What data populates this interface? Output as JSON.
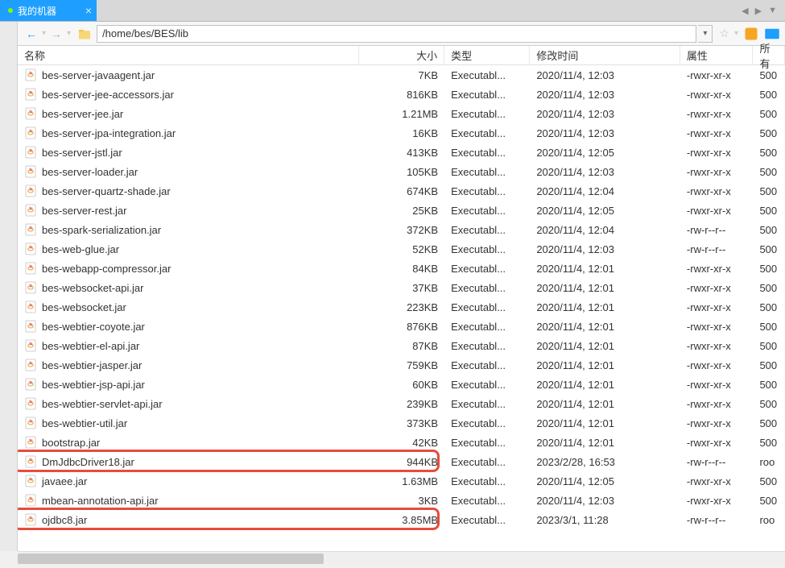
{
  "tab": {
    "label": "我的机器"
  },
  "path": "/home/bes/BES/lib",
  "columns": {
    "name": "名称",
    "size": "大小",
    "type": "类型",
    "date": "修改时间",
    "perm": "属性",
    "owner": "所有"
  },
  "files": [
    {
      "name": "bes-server-javaagent.jar",
      "size": "7KB",
      "type": "Executabl...",
      "date": "2020/11/4, 12:03",
      "perm": "-rwxr-xr-x",
      "owner": "500"
    },
    {
      "name": "bes-server-jee-accessors.jar",
      "size": "816KB",
      "type": "Executabl...",
      "date": "2020/11/4, 12:03",
      "perm": "-rwxr-xr-x",
      "owner": "500"
    },
    {
      "name": "bes-server-jee.jar",
      "size": "1.21MB",
      "type": "Executabl...",
      "date": "2020/11/4, 12:03",
      "perm": "-rwxr-xr-x",
      "owner": "500"
    },
    {
      "name": "bes-server-jpa-integration.jar",
      "size": "16KB",
      "type": "Executabl...",
      "date": "2020/11/4, 12:03",
      "perm": "-rwxr-xr-x",
      "owner": "500"
    },
    {
      "name": "bes-server-jstl.jar",
      "size": "413KB",
      "type": "Executabl...",
      "date": "2020/11/4, 12:05",
      "perm": "-rwxr-xr-x",
      "owner": "500"
    },
    {
      "name": "bes-server-loader.jar",
      "size": "105KB",
      "type": "Executabl...",
      "date": "2020/11/4, 12:03",
      "perm": "-rwxr-xr-x",
      "owner": "500"
    },
    {
      "name": "bes-server-quartz-shade.jar",
      "size": "674KB",
      "type": "Executabl...",
      "date": "2020/11/4, 12:04",
      "perm": "-rwxr-xr-x",
      "owner": "500"
    },
    {
      "name": "bes-server-rest.jar",
      "size": "25KB",
      "type": "Executabl...",
      "date": "2020/11/4, 12:05",
      "perm": "-rwxr-xr-x",
      "owner": "500"
    },
    {
      "name": "bes-spark-serialization.jar",
      "size": "372KB",
      "type": "Executabl...",
      "date": "2020/11/4, 12:04",
      "perm": "-rw-r--r--",
      "owner": "500"
    },
    {
      "name": "bes-web-glue.jar",
      "size": "52KB",
      "type": "Executabl...",
      "date": "2020/11/4, 12:03",
      "perm": "-rw-r--r--",
      "owner": "500"
    },
    {
      "name": "bes-webapp-compressor.jar",
      "size": "84KB",
      "type": "Executabl...",
      "date": "2020/11/4, 12:01",
      "perm": "-rwxr-xr-x",
      "owner": "500"
    },
    {
      "name": "bes-websocket-api.jar",
      "size": "37KB",
      "type": "Executabl...",
      "date": "2020/11/4, 12:01",
      "perm": "-rwxr-xr-x",
      "owner": "500"
    },
    {
      "name": "bes-websocket.jar",
      "size": "223KB",
      "type": "Executabl...",
      "date": "2020/11/4, 12:01",
      "perm": "-rwxr-xr-x",
      "owner": "500"
    },
    {
      "name": "bes-webtier-coyote.jar",
      "size": "876KB",
      "type": "Executabl...",
      "date": "2020/11/4, 12:01",
      "perm": "-rwxr-xr-x",
      "owner": "500"
    },
    {
      "name": "bes-webtier-el-api.jar",
      "size": "87KB",
      "type": "Executabl...",
      "date": "2020/11/4, 12:01",
      "perm": "-rwxr-xr-x",
      "owner": "500"
    },
    {
      "name": "bes-webtier-jasper.jar",
      "size": "759KB",
      "type": "Executabl...",
      "date": "2020/11/4, 12:01",
      "perm": "-rwxr-xr-x",
      "owner": "500"
    },
    {
      "name": "bes-webtier-jsp-api.jar",
      "size": "60KB",
      "type": "Executabl...",
      "date": "2020/11/4, 12:01",
      "perm": "-rwxr-xr-x",
      "owner": "500"
    },
    {
      "name": "bes-webtier-servlet-api.jar",
      "size": "239KB",
      "type": "Executabl...",
      "date": "2020/11/4, 12:01",
      "perm": "-rwxr-xr-x",
      "owner": "500"
    },
    {
      "name": "bes-webtier-util.jar",
      "size": "373KB",
      "type": "Executabl...",
      "date": "2020/11/4, 12:01",
      "perm": "-rwxr-xr-x",
      "owner": "500"
    },
    {
      "name": "bootstrap.jar",
      "size": "42KB",
      "type": "Executabl...",
      "date": "2020/11/4, 12:01",
      "perm": "-rwxr-xr-x",
      "owner": "500"
    },
    {
      "name": "DmJdbcDriver18.jar",
      "size": "944KB",
      "type": "Executabl...",
      "date": "2023/2/28, 16:53",
      "perm": "-rw-r--r--",
      "owner": "roo"
    },
    {
      "name": "javaee.jar",
      "size": "1.63MB",
      "type": "Executabl...",
      "date": "2020/11/4, 12:05",
      "perm": "-rwxr-xr-x",
      "owner": "500"
    },
    {
      "name": "mbean-annotation-api.jar",
      "size": "3KB",
      "type": "Executabl...",
      "date": "2020/11/4, 12:03",
      "perm": "-rwxr-xr-x",
      "owner": "500"
    },
    {
      "name": "ojdbc8.jar",
      "size": "3.85MB",
      "type": "Executabl...",
      "date": "2023/3/1, 11:28",
      "perm": "-rw-r--r--",
      "owner": "roo"
    }
  ],
  "highlight_indices": [
    20,
    23
  ],
  "colors": {
    "tab_bg": "#1e9fff",
    "highlight": "#e74c3c"
  }
}
